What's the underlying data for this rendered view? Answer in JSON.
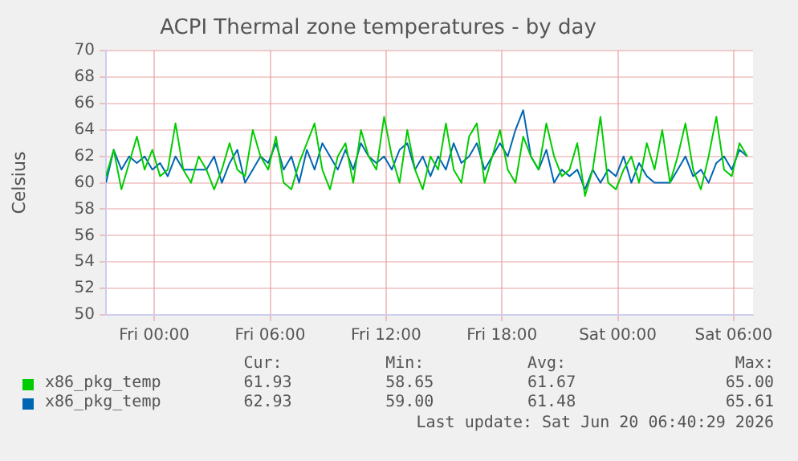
{
  "chart_data": {
    "type": "line",
    "title": "ACPI Thermal zone temperatures - by day",
    "ylabel": "Celsius",
    "x": [
      "2026-06-18T21:30",
      "2026-06-18T21:54",
      "2026-06-18T22:18",
      "2026-06-18T22:42",
      "2026-06-18T23:06",
      "2026-06-18T23:30",
      "2026-06-18T23:54",
      "2026-06-19T00:18",
      "2026-06-19T00:42",
      "2026-06-19T01:06",
      "2026-06-19T01:30",
      "2026-06-19T01:54",
      "2026-06-19T02:18",
      "2026-06-19T02:42",
      "2026-06-19T03:06",
      "2026-06-19T03:30",
      "2026-06-19T03:54",
      "2026-06-19T04:18",
      "2026-06-19T04:42",
      "2026-06-19T05:06",
      "2026-06-19T05:30",
      "2026-06-19T05:54",
      "2026-06-19T06:18",
      "2026-06-19T06:42",
      "2026-06-19T07:06",
      "2026-06-19T07:30",
      "2026-06-19T07:54",
      "2026-06-19T08:18",
      "2026-06-19T08:42",
      "2026-06-19T09:06",
      "2026-06-19T09:30",
      "2026-06-19T09:54",
      "2026-06-19T10:18",
      "2026-06-19T10:42",
      "2026-06-19T11:06",
      "2026-06-19T11:30",
      "2026-06-19T11:54",
      "2026-06-19T12:18",
      "2026-06-19T12:42",
      "2026-06-19T13:06",
      "2026-06-19T13:30",
      "2026-06-19T13:54",
      "2026-06-19T14:18",
      "2026-06-19T14:42",
      "2026-06-19T15:06",
      "2026-06-19T15:30",
      "2026-06-19T15:54",
      "2026-06-19T16:18",
      "2026-06-19T16:42",
      "2026-06-19T17:06",
      "2026-06-19T17:30",
      "2026-06-19T17:54",
      "2026-06-19T18:18",
      "2026-06-19T18:42",
      "2026-06-19T19:06",
      "2026-06-19T19:30",
      "2026-06-19T19:54",
      "2026-06-19T20:18",
      "2026-06-19T20:42",
      "2026-06-19T21:06",
      "2026-06-19T21:30",
      "2026-06-19T21:54",
      "2026-06-19T22:18",
      "2026-06-19T22:42",
      "2026-06-19T23:06",
      "2026-06-19T23:30",
      "2026-06-19T23:54",
      "2026-06-20T00:18",
      "2026-06-20T00:42",
      "2026-06-20T01:06",
      "2026-06-20T01:30",
      "2026-06-20T01:54",
      "2026-06-20T02:18",
      "2026-06-20T02:42",
      "2026-06-20T03:06",
      "2026-06-20T03:30",
      "2026-06-20T03:54",
      "2026-06-20T04:18",
      "2026-06-20T04:42",
      "2026-06-20T05:06",
      "2026-06-20T05:30",
      "2026-06-20T05:54",
      "2026-06-20T06:18",
      "2026-06-20T06:42"
    ],
    "series": [
      {
        "name": "x86_pkg_temp",
        "color": "#00cc00",
        "values": [
          60.5,
          62.5,
          59.5,
          61.5,
          63.5,
          61,
          62.5,
          60.5,
          61,
          64.5,
          61,
          60,
          62,
          61,
          59.5,
          61,
          63,
          61,
          60.5,
          64,
          62,
          61,
          63.5,
          60,
          59.5,
          61.5,
          63,
          64.5,
          61,
          59.5,
          62,
          63,
          60,
          64,
          62,
          61,
          65,
          62,
          60,
          64,
          61,
          59.5,
          62,
          61,
          64.5,
          61,
          60,
          63.5,
          64.5,
          60,
          62,
          64,
          61,
          60,
          63.5,
          62,
          61,
          64.5,
          62,
          60.5,
          61,
          63,
          59,
          61,
          65,
          60,
          59.5,
          61,
          62,
          60,
          63,
          61,
          64,
          60,
          62,
          64.5,
          61,
          59.5,
          62,
          65,
          61,
          60.5,
          63,
          62
        ]
      },
      {
        "name": "x86_pkg_temp",
        "color": "#0066b3",
        "values": [
          60,
          62.5,
          61,
          62,
          61.5,
          62,
          61,
          61.5,
          60.5,
          62,
          61,
          61,
          61,
          61,
          62,
          60,
          61.5,
          62.5,
          60,
          61,
          62,
          61.5,
          63,
          61,
          62,
          60,
          62.5,
          61,
          63,
          62,
          61,
          62.5,
          61,
          63,
          62,
          61.5,
          62,
          61,
          62.5,
          63,
          61,
          62,
          60.5,
          62,
          61,
          63,
          61.5,
          62,
          63,
          61,
          62,
          63,
          62,
          64,
          65.5,
          62,
          61,
          62.5,
          60,
          61,
          60.5,
          61,
          59.5,
          61,
          60,
          61,
          60.5,
          62,
          60,
          61.5,
          60.5,
          60,
          60,
          60,
          61,
          62,
          60.5,
          61,
          60,
          61.5,
          62,
          61,
          62.5,
          62
        ]
      }
    ],
    "xlim": [
      "2026-06-18T21:30",
      "2026-06-20T07:00"
    ],
    "xticks": [
      {
        "value": "2026-06-19T00:00",
        "label": "Fri 00:00"
      },
      {
        "value": "2026-06-19T06:00",
        "label": "Fri 06:00"
      },
      {
        "value": "2026-06-19T12:00",
        "label": "Fri 12:00"
      },
      {
        "value": "2026-06-19T18:00",
        "label": "Fri 18:00"
      },
      {
        "value": "2026-06-20T00:00",
        "label": "Sat 00:00"
      },
      {
        "value": "2026-06-20T06:00",
        "label": "Sat 06:00"
      }
    ],
    "ylim": [
      50,
      70
    ],
    "yticks": [
      50,
      52,
      54,
      56,
      58,
      60,
      62,
      64,
      66,
      68,
      70
    ],
    "grid": true,
    "legend": "bottom",
    "marker": "none",
    "line_style": "solid",
    "annotations": [
      "Cur:",
      "Min:",
      "Avg:",
      "Max:",
      "61.93",
      "58.65",
      "61.67",
      "65.00",
      "62.93",
      "59.00",
      "61.48",
      "65.61",
      "Last update: Sat Jun 20 06:40:29 2026"
    ]
  }
}
